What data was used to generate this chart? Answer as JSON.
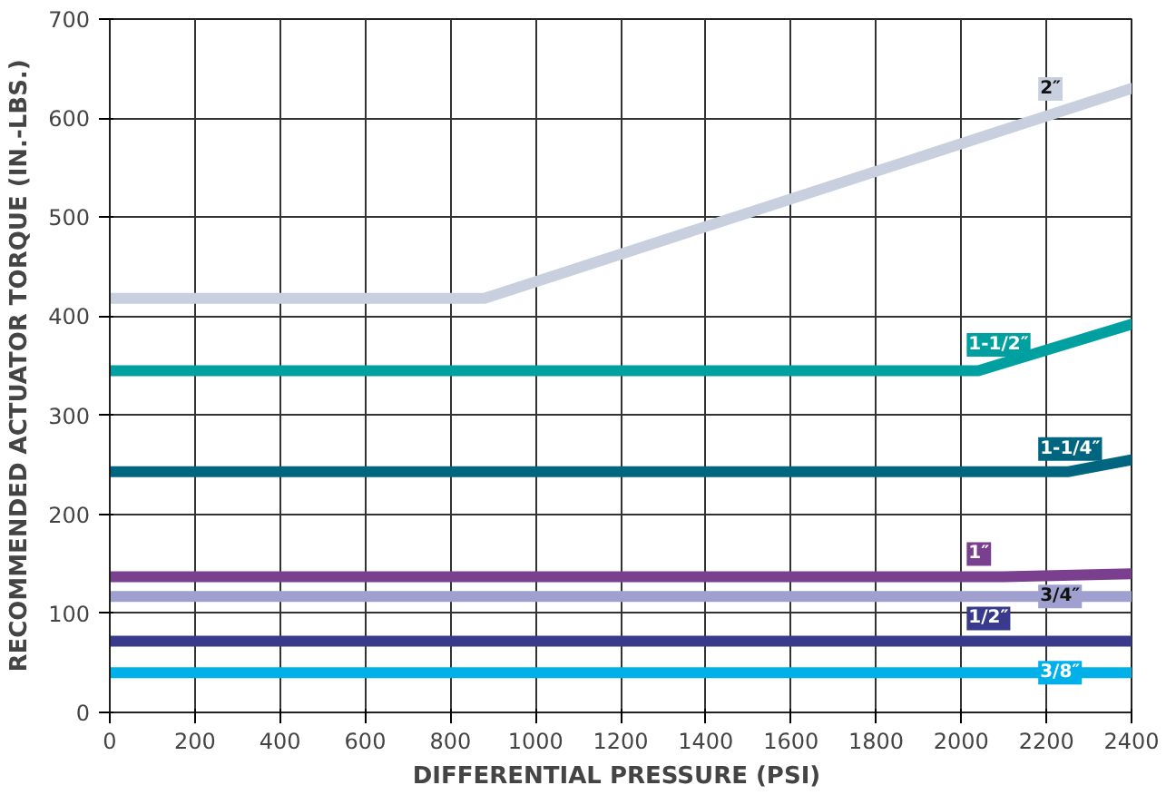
{
  "chart_data": {
    "type": "line",
    "xlabel": "DIFFERENTIAL PRESSURE  (PSI)",
    "ylabel": "RECOMMENDED ACTUATOR TORQUE (IN.-LBS.)",
    "xlim": [
      0,
      2400
    ],
    "ylim": [
      0,
      700
    ],
    "xticks": [
      0,
      200,
      400,
      600,
      800,
      1000,
      1200,
      1400,
      1600,
      1800,
      2000,
      2200,
      2400
    ],
    "yticks": [
      0,
      100,
      200,
      300,
      400,
      500,
      600,
      700
    ],
    "grid": true,
    "marker": "none",
    "line_style": "solid",
    "series": [
      {
        "name": "2″",
        "color": "#c8cfdf",
        "x": [
          0,
          880,
          2400
        ],
        "values": [
          418,
          418,
          630
        ]
      },
      {
        "name": "1-1/2″",
        "color": "#00a0a0",
        "x": [
          0,
          2040,
          2400
        ],
        "values": [
          345,
          345,
          392
        ]
      },
      {
        "name": "1-1/4″",
        "color": "#006680",
        "x": [
          0,
          2250,
          2400
        ],
        "values": [
          243,
          243,
          255
        ]
      },
      {
        "name": "1″",
        "color": "#7b3f8f",
        "x": [
          0,
          2100,
          2400
        ],
        "values": [
          137,
          137,
          140
        ]
      },
      {
        "name": "3/4″",
        "color": "#a0a0d0",
        "x": [
          0,
          2400
        ],
        "values": [
          117,
          117
        ]
      },
      {
        "name": "1/2″",
        "color": "#3a3a8c",
        "x": [
          0,
          2400
        ],
        "values": [
          72,
          72
        ]
      },
      {
        "name": "3/8″",
        "color": "#00b0e8",
        "x": [
          0,
          2400
        ],
        "values": [
          40,
          40
        ]
      }
    ]
  }
}
